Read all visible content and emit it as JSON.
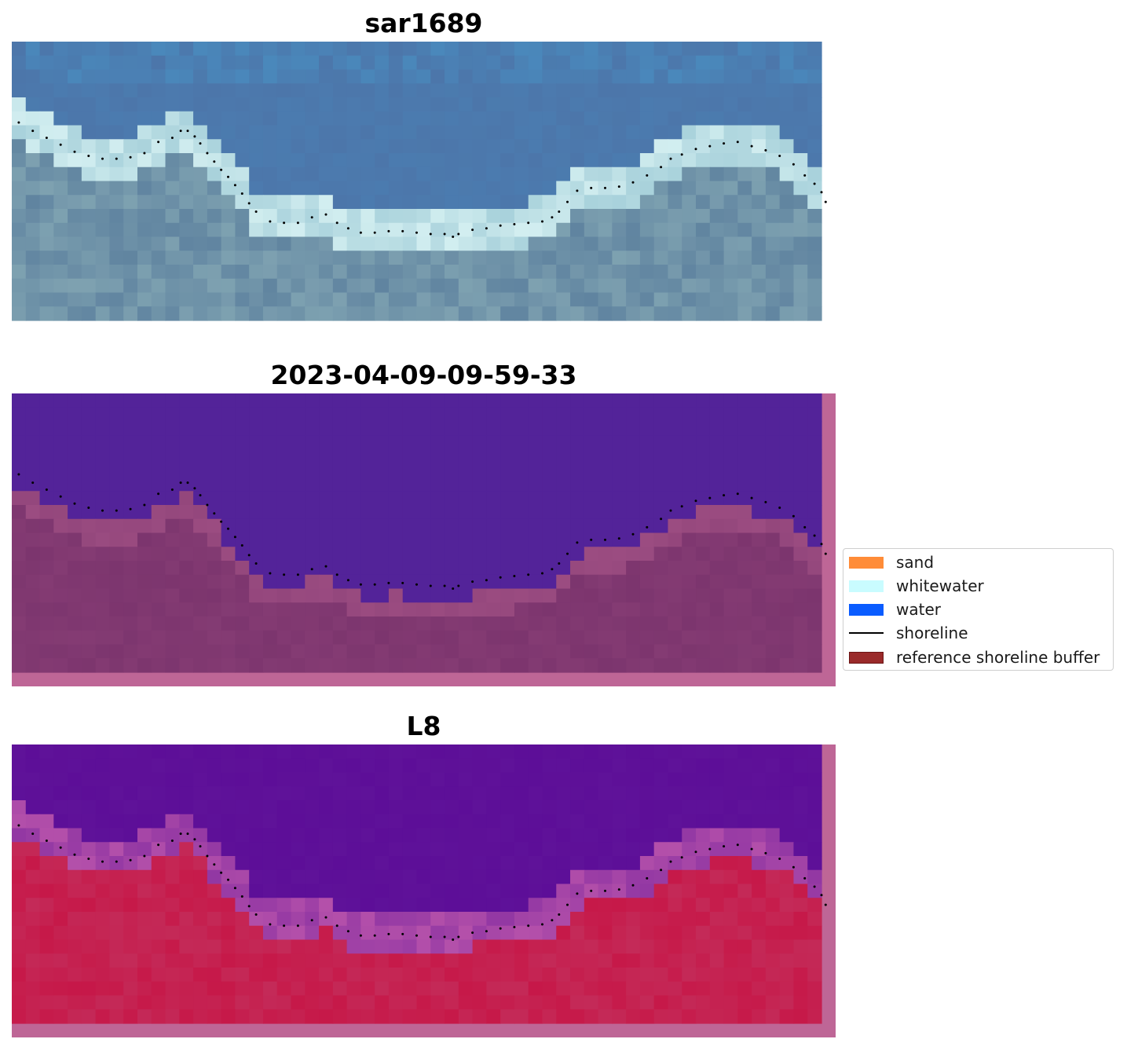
{
  "panels": [
    {
      "title": "sar1689",
      "kind": "rgb"
    },
    {
      "title": "2023-04-09-09-59-33",
      "kind": "classified"
    },
    {
      "title": "L8",
      "kind": "index"
    }
  ],
  "legend": {
    "items": [
      {
        "label": "sand",
        "color": "#ff8c38",
        "style": "patch"
      },
      {
        "label": "whitewater",
        "color": "#c9fcff",
        "style": "patch"
      },
      {
        "label": "water",
        "color": "#0a5cff",
        "style": "patch"
      },
      {
        "label": "shoreline",
        "color": "#000000",
        "style": "line"
      },
      {
        "label": "reference shoreline buffer",
        "color": "#9a2a2a",
        "style": "patch"
      }
    ]
  },
  "colors": {
    "water_class": "#532399",
    "buffer_overlay": "#be6696",
    "land_class": "#7c356e",
    "rgb_water": "#4c76aa",
    "rgb_whitewater": "#d2eef0",
    "index_water": "#5f1299",
    "index_land": "#c42a58"
  },
  "chart_data": {
    "type": "image-panels",
    "image_grid": {
      "columns": 58,
      "rows": 20
    },
    "shoreline_points": [
      [
        0.5,
        5.8
      ],
      [
        1.5,
        6.4
      ],
      [
        2.5,
        6.9
      ],
      [
        3.5,
        7.4
      ],
      [
        4.5,
        7.9
      ],
      [
        5.5,
        8.2
      ],
      [
        6.5,
        8.4
      ],
      [
        7.5,
        8.4
      ],
      [
        8.5,
        8.3
      ],
      [
        9.5,
        8.0
      ],
      [
        10.5,
        7.2
      ],
      [
        11.5,
        6.9
      ],
      [
        12.1,
        6.4
      ],
      [
        12.6,
        6.4
      ],
      [
        13.1,
        6.8
      ],
      [
        13.5,
        7.3
      ],
      [
        14.0,
        8.0
      ],
      [
        14.5,
        8.6
      ],
      [
        15.0,
        9.2
      ],
      [
        15.5,
        9.7
      ],
      [
        16.0,
        10.3
      ],
      [
        16.5,
        10.9
      ],
      [
        17.0,
        11.6
      ],
      [
        17.5,
        12.2
      ],
      [
        18.5,
        12.9
      ],
      [
        19.5,
        13.0
      ],
      [
        20.5,
        13.0
      ],
      [
        21.5,
        12.6
      ],
      [
        22.5,
        12.4
      ],
      [
        23.3,
        13.0
      ],
      [
        24.1,
        13.4
      ],
      [
        25.0,
        13.7
      ],
      [
        26.0,
        13.7
      ],
      [
        27.0,
        13.6
      ],
      [
        28.0,
        13.6
      ],
      [
        29.0,
        13.7
      ],
      [
        30.0,
        13.8
      ],
      [
        31.0,
        13.8
      ],
      [
        31.6,
        14.0
      ],
      [
        32.0,
        13.8
      ],
      [
        33.0,
        13.5
      ],
      [
        34.0,
        13.4
      ],
      [
        35.0,
        13.2
      ],
      [
        36.0,
        13.1
      ],
      [
        37.0,
        13.0
      ],
      [
        38.0,
        12.9
      ],
      [
        38.7,
        12.6
      ],
      [
        39.2,
        12.2
      ],
      [
        39.8,
        11.5
      ],
      [
        40.5,
        10.7
      ],
      [
        41.5,
        10.5
      ],
      [
        42.5,
        10.5
      ],
      [
        43.5,
        10.4
      ],
      [
        44.5,
        10.1
      ],
      [
        45.5,
        9.6
      ],
      [
        46.5,
        9.0
      ],
      [
        47.2,
        8.4
      ],
      [
        48.0,
        8.1
      ],
      [
        49.0,
        7.7
      ],
      [
        50.0,
        7.5
      ],
      [
        51.0,
        7.3
      ],
      [
        52.0,
        7.2
      ],
      [
        53.0,
        7.5
      ],
      [
        54.0,
        7.8
      ],
      [
        55.0,
        8.2
      ],
      [
        56.0,
        8.8
      ],
      [
        56.8,
        9.6
      ],
      [
        57.5,
        10.2
      ],
      [
        58.0,
        10.8
      ],
      [
        58.3,
        11.5
      ]
    ]
  }
}
